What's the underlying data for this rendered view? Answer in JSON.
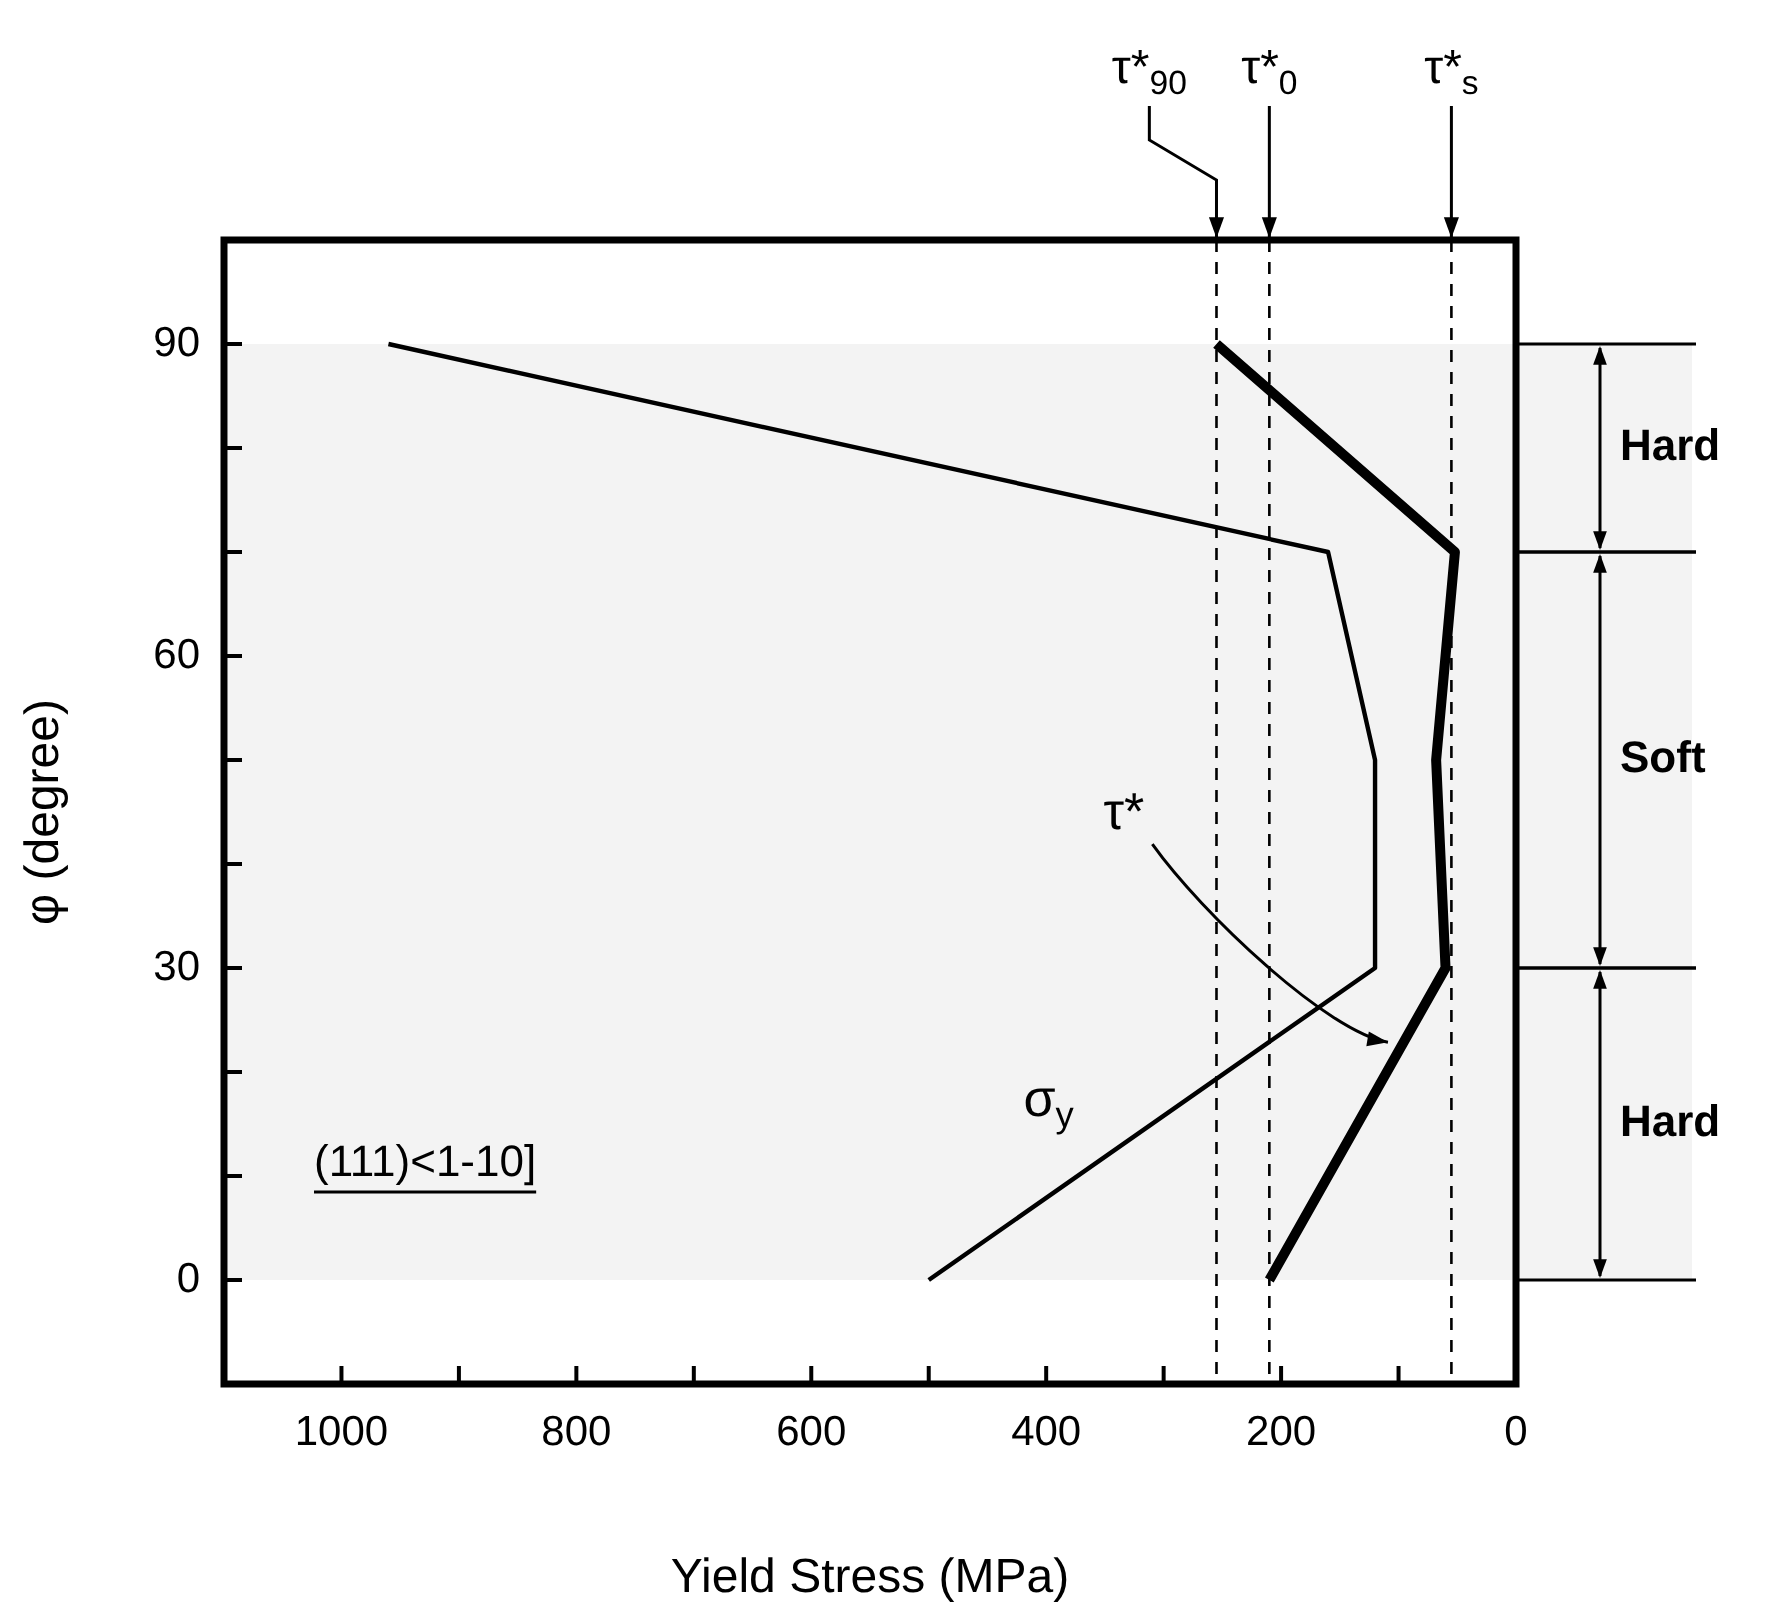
{
  "chart_data": {
    "type": "line",
    "xlabel": "Yield Stress (MPa)",
    "ylabel": "φ (degree)",
    "series": [
      {
        "name": "σ$_{y}$",
        "color": "#000000",
        "x": [
          500,
          120,
          120,
          160,
          960
        ],
        "values": [
          0,
          30,
          50,
          70,
          90
        ]
      },
      {
        "name": "τ*",
        "color": "#000000",
        "x": [
          210,
          60,
          68,
          52,
          255
        ],
        "values": [
          0,
          30,
          50,
          70,
          90
        ]
      }
    ],
    "xlim": [
      1100,
      0
    ],
    "xticks": [
      1000,
      {
        "value": 900,
        "label": null
      },
      800,
      {
        "value": 700,
        "label": null
      },
      600,
      {
        "value": 500,
        "label": null
      },
      400,
      {
        "value": 300,
        "label": null
      },
      200,
      {
        "value": 100,
        "label": null
      },
      0
    ],
    "ylim": [
      -10,
      100
    ],
    "yticks": [
      0,
      {
        "value": 10,
        "label": null
      },
      {
        "value": 20,
        "label": null
      },
      30,
      {
        "value": 40,
        "label": null
      },
      {
        "value": 50,
        "label": null
      },
      60,
      {
        "value": 70,
        "label": null
      },
      {
        "value": 80,
        "label": null
      },
      90
    ],
    "ref_lines": [
      {
        "axis": "x",
        "value": 255,
        "label": "τ*$_{90}$",
        "line_style": "dashed"
      },
      {
        "axis": "x",
        "value": 210,
        "label": "τ*$_{0}$",
        "line_style": "dashed"
      },
      {
        "axis": "x",
        "value": 55,
        "label": "τ*$_{s}$",
        "line_style": "dashed"
      }
    ],
    "bands": [
      {
        "axis": "y",
        "from": 0,
        "to": 30,
        "label": "Hard"
      },
      {
        "axis": "y",
        "from": 30,
        "to": 70,
        "label": "Soft"
      },
      {
        "axis": "y",
        "from": 70,
        "to": 90,
        "label": "Hard"
      }
    ],
    "annotations": [
      "(111)<1-10]"
    ],
    "legend": false,
    "marker": "none",
    "line_style": "solid"
  }
}
